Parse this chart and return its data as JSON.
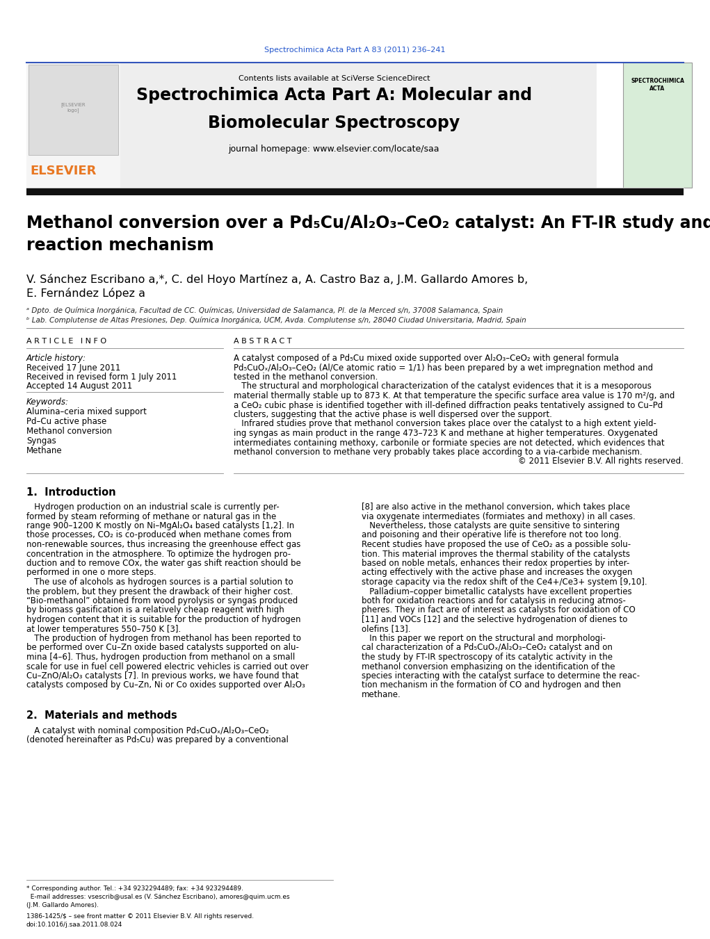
{
  "page_width": 10.21,
  "page_height": 13.51,
  "dpi": 100,
  "bg_color": "#ffffff",
  "top_journal_ref": "Spectrochimica Acta Part A 83 (2011) 236–241",
  "top_journal_ref_color": "#2255cc",
  "journal_header_bg": "#eeeeee",
  "journal_title_line1": "Spectrochimica Acta Part A: Molecular and",
  "journal_title_line2": "Biomolecular Spectroscopy",
  "journal_homepage_prefix": "journal homepage: ",
  "journal_homepage_url": "www.elsevier.com/locate/saa",
  "contents_text": "Contents lists available at ",
  "sciverse_text": "SciVerse ScienceDirect",
  "elsevier_color": "#e87722",
  "link_color": "#2255cc",
  "article_title_line1": "Methanol conversion over a Pd₅Cu/Al₂O₃–CeO₂ catalyst: An FT-IR study and",
  "article_title_line2": "reaction mechanism",
  "authors_line1": "V. Sánchez Escribano a,*, C. del Hoyo Martínez a, A. Castro Baz a, J.M. Gallardo Amores b,",
  "authors_line2": "E. Fernández López a",
  "affil_a": "ᵃ Dpto. de Química Inorgánica, Facultad de CC. Químicas, Universidad de Salamanca, Pl. de la Merced s/n, 37008 Salamanca, Spain",
  "affil_b": "ᵇ Lab. Complutense de Altas Presiones, Dep. Química Inorgánica, UCM, Avda. Complutense s/n, 28040 Ciudad Universitaria, Madrid, Spain",
  "article_info_header": "A R T I C L E   I N F O",
  "abstract_header": "A B S T R A C T",
  "article_history_label": "Article history:",
  "received": "Received 17 June 2011",
  "revised": "Received in revised form 1 July 2011",
  "accepted": "Accepted 14 August 2011",
  "keywords_label": "Keywords:",
  "keywords": [
    "Alumina–ceria mixed support",
    "Pd–Cu active phase",
    "Methanol conversion",
    "Syngas",
    "Methane"
  ],
  "abstract_lines": [
    "A catalyst composed of a Pd₅Cu mixed oxide supported over Al₂O₃–CeO₂ with general formula",
    "Pd₅CuOₓ/Al₂O₃–CeO₂ (Al/Ce atomic ratio = 1/1) has been prepared by a wet impregnation method and",
    "tested in the methanol conversion.",
    "   The structural and morphological characterization of the catalyst evidences that it is a mesoporous",
    "material thermally stable up to 873 K. At that temperature the specific surface area value is 170 m²/g, and",
    "a CeO₂ cubic phase is identified together with ill-defined diffraction peaks tentatively assigned to Cu–Pd",
    "clusters, suggesting that the active phase is well dispersed over the support.",
    "   Infrared studies prove that methanol conversion takes place over the catalyst to a high extent yield-",
    "ing syngas as main product in the range 473–723 K and methane at higher temperatures. Oxygenated",
    "intermediates containing methoxy, carbonile or formiate species are not detected, which evidences that",
    "methanol conversion to methane very probably takes place according to a via-carbide mechanism.",
    "© 2011 Elsevier B.V. All rights reserved."
  ],
  "col1_lines": [
    "   Hydrogen production on an industrial scale is currently per-",
    "formed by steam reforming of methane or natural gas in the",
    "range 900–1200 K mostly on Ni–MgAl₂O₄ based catalysts [1,2]. In",
    "those processes, CO₂ is co-produced when methane comes from",
    "non-renewable sources, thus increasing the greenhouse effect gas",
    "concentration in the atmosphere. To optimize the hydrogen pro-",
    "duction and to remove COx, the water gas shift reaction should be",
    "performed in one o more steps.",
    "   The use of alcohols as hydrogen sources is a partial solution to",
    "the problem, but they present the drawback of their higher cost.",
    "“Bio-methanol” obtained from wood pyrolysis or syngas produced",
    "by biomass gasification is a relatively cheap reagent with high",
    "hydrogen content that it is suitable for the production of hydrogen",
    "at lower temperatures 550–750 K [3].",
    "   The production of hydrogen from methanol has been reported to",
    "be performed over Cu–Zn oxide based catalysts supported on alu-",
    "mina [4–6]. Thus, hydrogen production from methanol on a small",
    "scale for use in fuel cell powered electric vehicles is carried out over",
    "Cu–ZnO/Al₂O₃ catalysts [7]. In previous works, we have found that",
    "catalysts composed by Cu–Zn, Ni or Co oxides supported over Al₂O₃"
  ],
  "col2_lines": [
    "[8] are also active in the methanol conversion, which takes place",
    "via oxygenate intermediates (formiates and methoxy) in all cases.",
    "   Nevertheless, those catalysts are quite sensitive to sintering",
    "and poisoning and their operative life is therefore not too long.",
    "Recent studies have proposed the use of CeO₂ as a possible solu-",
    "tion. This material improves the thermal stability of the catalysts",
    "based on noble metals, enhances their redox properties by inter-",
    "acting effectively with the active phase and increases the oxygen",
    "storage capacity via the redox shift of the Ce4+/Ce3+ system [9,10].",
    "   Palladium–copper bimetallic catalysts have excellent properties",
    "both for oxidation reactions and for catalysis in reducing atmos-",
    "pheres. They in fact are of interest as catalysts for oxidation of CO",
    "[11] and VOCs [12] and the selective hydrogenation of dienes to",
    "olefins [13].",
    "   In this paper we report on the structural and morphologi-",
    "cal characterization of a Pd₅CuOₓ/Al₂O₃–CeO₂ catalyst and on",
    "the study by FT-IR spectroscopy of its catalytic activity in the",
    "methanol conversion emphasizing on the identification of the",
    "species interacting with the catalyst surface to determine the reac-",
    "tion mechanism in the formation of CO and hydrogen and then",
    "methane."
  ],
  "section2_col1_lines": [
    "   A catalyst with nominal composition Pd₅CuOₓ/Al₂O₃–CeO₂",
    "(denoted hereinafter as Pd₅Cu) was prepared by a conventional"
  ],
  "footer_lines": [
    "* Corresponding author. Tel.: +34 9232294489; fax: +34 923294489.",
    "  E-mail addresses: vsescrib@usal.es (V. Sánchez Escribano), amores@quim.ucm.es",
    "(J.M. Gallardo Amores)."
  ],
  "issn_line1": "1386-1425/$ – see front matter © 2011 Elsevier B.V. All rights reserved.",
  "issn_line2": "doi:10.1016/j.saa.2011.08.024",
  "black": "#000000",
  "dark_gray": "#222222",
  "header_bar_color": "#111111"
}
